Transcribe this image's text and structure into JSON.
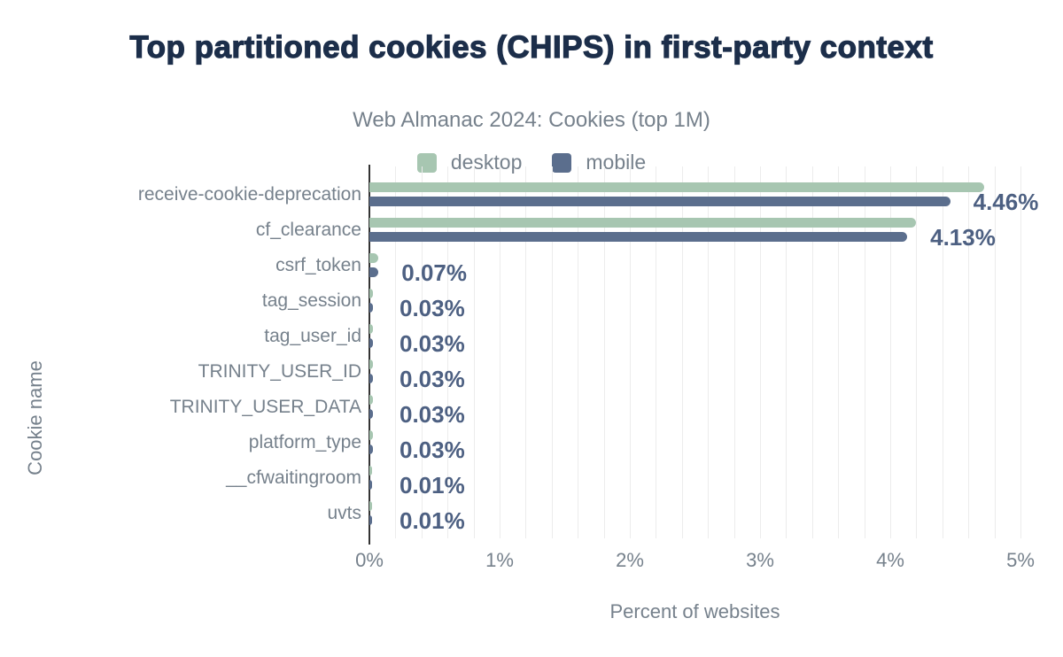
{
  "header": {
    "title": "Top partitioned cookies (CHIPS) in first-party context",
    "subtitle": "Web Almanac 2024: Cookies (top 1M)"
  },
  "legend": {
    "position": "top-center",
    "items": [
      {
        "label": "desktop",
        "color": "#a7c6b1"
      },
      {
        "label": "mobile",
        "color": "#5b6e8d"
      }
    ]
  },
  "colors": {
    "title": "#1c2e4a",
    "muted_text": "#76818c",
    "value_label": "#4d6082",
    "desktop_bar": "#a7c6b1",
    "mobile_bar": "#5b6e8d",
    "gridline": "#ececec",
    "axis_line": "#333333",
    "background": "#ffffff"
  },
  "chart_data": {
    "type": "bar",
    "orientation": "horizontal",
    "title": "Top partitioned cookies (CHIPS) in first-party context",
    "subtitle": "Web Almanac 2024: Cookies (top 1M)",
    "xlabel": "Percent of websites",
    "ylabel": "Cookie name",
    "xlim": [
      0,
      5
    ],
    "x_ticks": [
      "0%",
      "1%",
      "2%",
      "3%",
      "4%",
      "5%"
    ],
    "grid": {
      "visible": true,
      "vertical_minor_step_pct": 0.2
    },
    "legend_position": "top-center",
    "categories": [
      "receive-cookie-deprecation",
      "cf_clearance",
      "csrf_token",
      "tag_session",
      "tag_user_id",
      "TRINITY_USER_ID",
      "TRINITY_USER_DATA",
      "platform_type",
      "__cfwaitingroom",
      "uvts"
    ],
    "series": [
      {
        "name": "desktop",
        "color": "#a7c6b1",
        "values": [
          4.72,
          4.2,
          0.07,
          0.03,
          0.03,
          0.03,
          0.03,
          0.03,
          0.01,
          0.01
        ]
      },
      {
        "name": "mobile",
        "color": "#5b6e8d",
        "values": [
          4.46,
          4.13,
          0.07,
          0.03,
          0.03,
          0.03,
          0.03,
          0.03,
          0.01,
          0.01
        ]
      }
    ],
    "bar_labels": [
      "4.46%",
      "4.13%",
      "0.07%",
      "0.03%",
      "0.03%",
      "0.03%",
      "0.03%",
      "0.03%",
      "0.01%",
      "0.01%"
    ],
    "bar_label_series": "mobile"
  }
}
